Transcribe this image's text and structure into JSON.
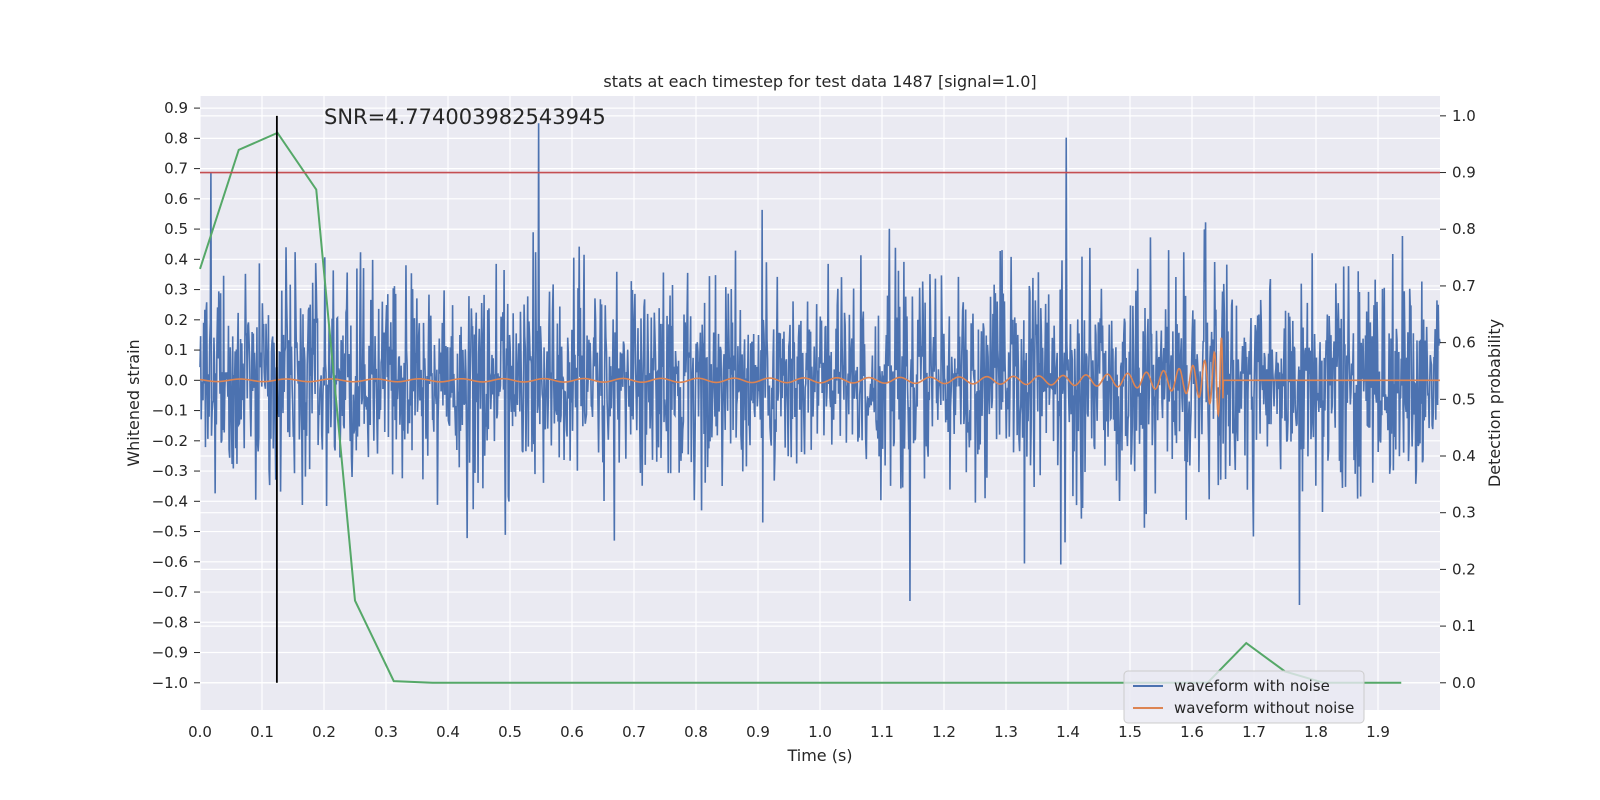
{
  "chart_data": {
    "type": "line",
    "title": "stats at each timestep for test data 1487 [signal=1.0]",
    "xlabel": "Time (s)",
    "ylabel": "Whitened strain",
    "y2label": "Detection probability",
    "xlim": [
      0.0,
      2.0
    ],
    "ylim": [
      -1.09,
      0.94
    ],
    "y2lim": [
      -0.048,
      1.035
    ],
    "x_ticks": [
      "0.0",
      "0.1",
      "0.2",
      "0.3",
      "0.4",
      "0.5",
      "0.6",
      "0.7",
      "0.8",
      "0.9",
      "1.0",
      "1.1",
      "1.2",
      "1.3",
      "1.4",
      "1.5",
      "1.6",
      "1.7",
      "1.8",
      "1.9"
    ],
    "y_ticks": [
      "0.9",
      "0.8",
      "0.7",
      "0.6",
      "0.5",
      "0.4",
      "0.3",
      "0.2",
      "0.1",
      "0.0",
      "−0.1",
      "−0.2",
      "−0.3",
      "−0.4",
      "−0.5",
      "−0.6",
      "−0.7",
      "−0.8",
      "−0.9",
      "−1.0"
    ],
    "y2_ticks": [
      "1.0",
      "0.9",
      "0.8",
      "0.7",
      "0.6",
      "0.5",
      "0.4",
      "0.3",
      "0.2",
      "0.1",
      "0.0"
    ],
    "annotation": "SNR=4.774003982543945",
    "threshold": 0.9,
    "marker_time": 0.124,
    "grid": true,
    "legend_position": "lower-right",
    "series": [
      {
        "name": "waveform with noise",
        "color": "#4c72b0",
        "axis": "left",
        "summary": {
          "x_start": 0.0,
          "x_end": 2.0,
          "y_min": -1.0,
          "y_max": 0.85,
          "samples": 2048
        }
      },
      {
        "name": "waveform without noise",
        "color": "#dd8452",
        "axis": "left",
        "summary": {
          "chirp_end_time": 1.65,
          "peak_amplitude": 0.26,
          "y_after_merger": 0.0
        }
      },
      {
        "name": "detection probability",
        "color": "#55a868",
        "axis": "right",
        "x": [
          0.0,
          0.0625,
          0.125,
          0.1875,
          0.25,
          0.3125,
          0.375,
          0.4375,
          0.5,
          1.5,
          1.625,
          1.6875,
          1.75,
          1.8125,
          1.875,
          1.9375
        ],
        "values": [
          0.73,
          0.94,
          0.97,
          0.87,
          0.145,
          0.003,
          0.0,
          0.0,
          0.0,
          0.0,
          0.0,
          0.07,
          0.02,
          0.0,
          0.0,
          0.0
        ]
      }
    ],
    "colors": {
      "plot_bg": "#eaeaf2",
      "grid": "#ffffff",
      "threshold_line": "#c44e52",
      "marker_line": "#000000"
    }
  }
}
